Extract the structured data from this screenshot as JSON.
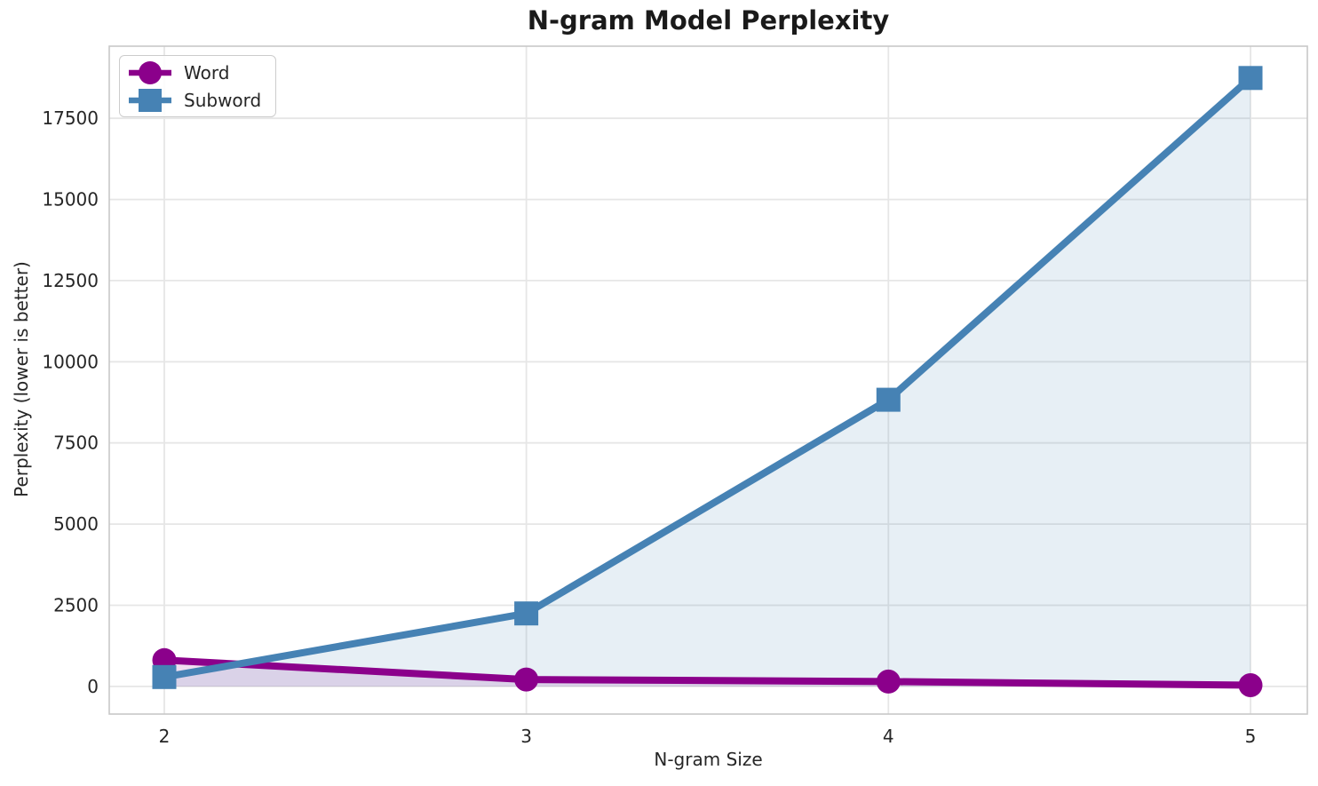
{
  "title": "N-gram Model Perplexity",
  "chart_data": {
    "type": "line",
    "title": "N-gram Model Perplexity",
    "xlabel": "N-gram Size",
    "ylabel": "Perplexity (lower is better)",
    "x": [
      2,
      3,
      4,
      5
    ],
    "xticks": [
      2,
      3,
      4,
      5
    ],
    "xtick_labels": [
      "2",
      "3",
      "4",
      "5"
    ],
    "yticks": [
      0,
      2500,
      5000,
      7500,
      10000,
      12500,
      15000,
      17500
    ],
    "ytick_labels": [
      "0",
      "2500",
      "5000",
      "7500",
      "10000",
      "12500",
      "15000",
      "17500"
    ],
    "xlim": [
      1.848,
      5.157
    ],
    "ylim": [
      -850,
      19720
    ],
    "grid": true,
    "legend_position": "upper-left",
    "background_color": "#ffffff",
    "grid_color": "#e6e6e6",
    "spine_color": "#c8c8c8",
    "tick_label_color": "#262626",
    "series": [
      {
        "name": "Word",
        "color": "#8B008B",
        "marker": "circle",
        "values": [
          810,
          215,
          150,
          40
        ],
        "area_fill_to_zero": true,
        "fill_alpha": 0.13
      },
      {
        "name": "Subword",
        "color": "#4682B4",
        "marker": "square",
        "values": [
          290,
          2250,
          8830,
          18740
        ],
        "area_fill_to_zero": true,
        "fill_alpha": 0.13
      }
    ]
  }
}
